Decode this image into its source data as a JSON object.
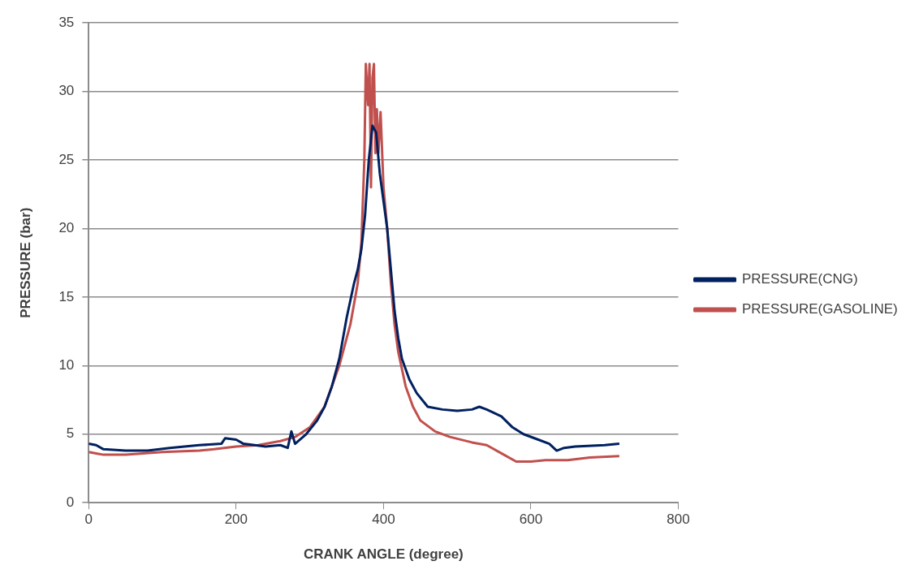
{
  "chart_data": {
    "type": "line",
    "xlabel": "CRANK ANGLE (degree)",
    "ylabel": "PRESSURE (bar)",
    "xlim": [
      0,
      800
    ],
    "xticks": [
      0,
      200,
      400,
      600,
      800
    ],
    "ylim": [
      0,
      35
    ],
    "yticks": [
      0,
      5,
      10,
      15,
      20,
      25,
      30,
      35
    ],
    "grid": "y",
    "legend": "right",
    "marker": "none",
    "line_style": "solid",
    "series": [
      {
        "name": "PRESSURE(CNG)",
        "color": "#002060",
        "x": [
          0,
          10,
          20,
          50,
          80,
          110,
          150,
          180,
          185,
          200,
          210,
          240,
          260,
          270,
          275,
          280,
          295,
          310,
          320,
          330,
          340,
          350,
          360,
          365,
          370,
          375,
          380,
          385,
          390,
          395,
          400,
          405,
          410,
          415,
          420,
          425,
          435,
          445,
          460,
          480,
          500,
          520,
          530,
          540,
          560,
          575,
          590,
          610,
          625,
          635,
          645,
          660,
          700,
          720
        ],
        "values": [
          4.3,
          4.2,
          3.9,
          3.8,
          3.8,
          4.0,
          4.2,
          4.3,
          4.7,
          4.6,
          4.3,
          4.1,
          4.2,
          4.0,
          5.2,
          4.3,
          5.0,
          6.0,
          7.0,
          8.5,
          10.5,
          13.5,
          16,
          17,
          18.5,
          21,
          25,
          27.5,
          27,
          24,
          22,
          20,
          17,
          14,
          12,
          10.5,
          9,
          8,
          7,
          6.8,
          6.7,
          6.8,
          7.0,
          6.8,
          6.3,
          5.5,
          5.0,
          4.6,
          4.3,
          3.8,
          4.0,
          4.1,
          4.2,
          4.3
        ]
      },
      {
        "name": "PRESSURE(GASOLINE)",
        "color": "#c0504d",
        "x": [
          0,
          10,
          20,
          50,
          100,
          150,
          170,
          200,
          230,
          260,
          280,
          300,
          320,
          340,
          355,
          365,
          370,
          374,
          376,
          379,
          381,
          383,
          385,
          387,
          389,
          391,
          393,
          396,
          400,
          405,
          410,
          415,
          420,
          430,
          440,
          450,
          470,
          490,
          520,
          540,
          560,
          580,
          600,
          620,
          650,
          680,
          720
        ],
        "values": [
          3.7,
          3.6,
          3.5,
          3.5,
          3.7,
          3.8,
          3.9,
          4.1,
          4.2,
          4.5,
          4.8,
          5.5,
          7,
          10,
          13,
          16,
          19,
          25,
          32,
          29,
          32,
          23,
          31,
          32,
          25.5,
          28.7,
          25.5,
          28.5,
          23,
          20,
          16,
          13,
          11,
          8.5,
          7,
          6,
          5.2,
          4.8,
          4.4,
          4.2,
          3.6,
          3.0,
          3.0,
          3.1,
          3.1,
          3.3,
          3.4
        ]
      }
    ]
  }
}
